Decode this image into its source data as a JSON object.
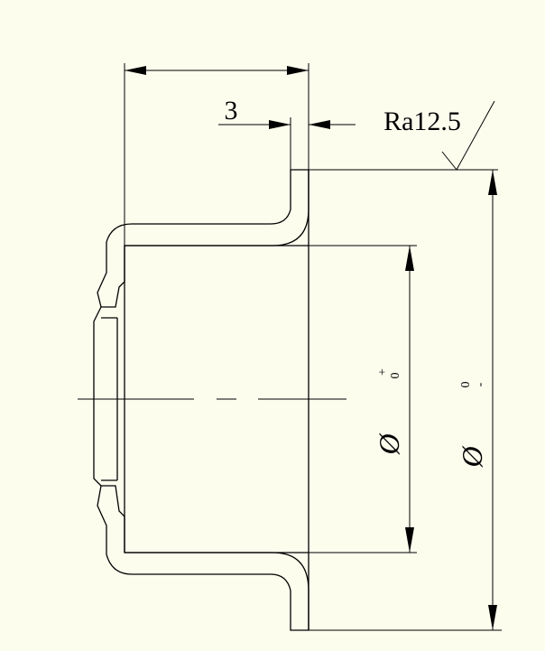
{
  "drawing": {
    "dim_width_label": "3",
    "roughness_label": "Ra12.5",
    "inner_diameter": {
      "symbol": "Ø",
      "tol_upper": "+",
      "tol_lower": "0"
    },
    "outer_diameter": {
      "symbol": "Ø",
      "tol_upper": "0",
      "tol_lower": "-"
    }
  },
  "colors": {
    "background": "#fdfdee",
    "line": "#000000"
  }
}
